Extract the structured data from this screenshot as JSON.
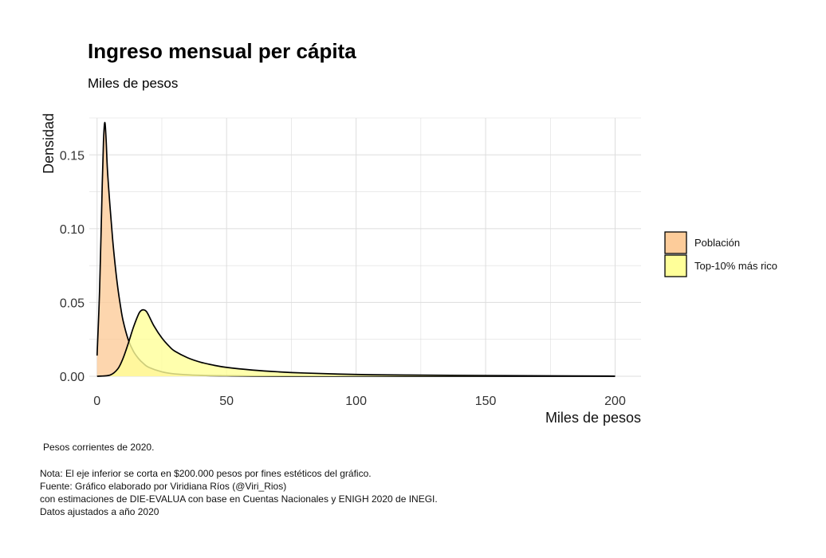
{
  "chart_data": {
    "type": "area",
    "title": "Ingreso mensual per cápita",
    "subtitle": "Miles de pesos",
    "xlabel": "Miles de pesos",
    "ylabel": "Densidad",
    "xlim": [
      -3,
      210
    ],
    "ylim": [
      0,
      0.175
    ],
    "x_ticks": [
      0,
      50,
      100,
      150,
      200
    ],
    "x_tick_labels": [
      "0",
      "50",
      "100",
      "150",
      "200"
    ],
    "y_ticks": [
      0,
      0.05,
      0.1,
      0.15
    ],
    "y_tick_labels": [
      "0.00",
      "0.05",
      "0.10",
      "0.15"
    ],
    "grid": true,
    "legend_position": "right",
    "series": [
      {
        "name": "Población",
        "color": "#fdcc9a",
        "x": [
          0,
          1,
          2,
          2.5,
          3,
          3.5,
          4,
          5,
          6,
          7,
          8,
          9,
          10,
          12,
          14,
          16,
          18,
          20,
          25,
          30,
          40,
          50,
          60,
          80,
          100,
          150,
          200
        ],
        "values": [
          0.014,
          0.06,
          0.13,
          0.16,
          0.172,
          0.16,
          0.14,
          0.115,
          0.093,
          0.075,
          0.06,
          0.048,
          0.038,
          0.025,
          0.017,
          0.012,
          0.0085,
          0.006,
          0.003,
          0.0016,
          0.0006,
          0.0003,
          0.0001,
          4e-05,
          2e-05,
          1e-05,
          0.0
        ]
      },
      {
        "name": "Top-10% más rico",
        "color": "#ffff99",
        "x": [
          0,
          5,
          8,
          10,
          12,
          14,
          16,
          17,
          18,
          19,
          20,
          22,
          25,
          28,
          30,
          35,
          40,
          45,
          50,
          60,
          70,
          80,
          100,
          120,
          150,
          175,
          200
        ],
        "values": [
          0.0,
          0.0008,
          0.005,
          0.012,
          0.022,
          0.033,
          0.042,
          0.0445,
          0.045,
          0.044,
          0.041,
          0.034,
          0.026,
          0.02,
          0.017,
          0.0125,
          0.0095,
          0.0075,
          0.006,
          0.0042,
          0.003,
          0.0022,
          0.0012,
          0.0008,
          0.0005,
          0.0003,
          0.0001
        ]
      }
    ]
  },
  "notes": {
    "line1": "Pesos corrientes de 2020.",
    "line2": "Nota: El eje inferior se corta en $200.000 pesos por fines estéticos del gráfico.",
    "line3": "Fuente: Gráfico elaborado por Viridiana Ríos (@Viri_Rios)",
    "line4": "con estimaciones de DIE-EVALUA con base en Cuentas Nacionales y ENIGH 2020 de INEGI.",
    "line5": "Datos ajustados a año 2020"
  },
  "colors": {
    "grid": "#dddddd",
    "curve_stroke": "#000000"
  }
}
